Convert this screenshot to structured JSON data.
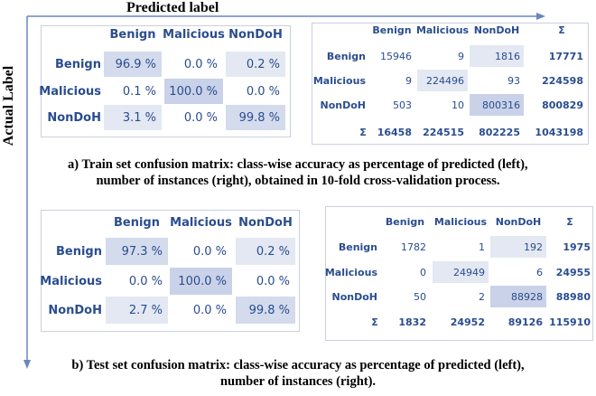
{
  "figure": {
    "axis_labels": {
      "predicted": "Predicted label",
      "actual": "Actual Label"
    },
    "panels": [
      {
        "left": {
          "headers": [
            "Benign",
            "Malicious",
            "NonDoH"
          ],
          "rows": [
            {
              "label": "Benign",
              "cells": [
                "96.9 %",
                "0.0 %",
                "0.2 %"
              ]
            },
            {
              "label": "Malicious",
              "cells": [
                "0.1 %",
                "100.0 %",
                "0.0 %"
              ]
            },
            {
              "label": "NonDoH",
              "cells": [
                "3.1 %",
                "0.0 %",
                "99.8 %"
              ]
            }
          ]
        },
        "right": {
          "headers": [
            "Benign",
            "Malicious",
            "NonDoH",
            "Σ"
          ],
          "rows": [
            {
              "label": "Benign",
              "cells": [
                15946,
                9,
                1816
              ],
              "total": 17771
            },
            {
              "label": "Malicious",
              "cells": [
                9,
                224496,
                93
              ],
              "total": 224598
            },
            {
              "label": "NonDoH",
              "cells": [
                503,
                10,
                800316
              ],
              "total": 800829
            }
          ],
          "sum_row": {
            "label": "Σ",
            "cells": [
              16458,
              224515,
              802225
            ],
            "total": 1043198
          }
        },
        "caption": [
          "a)  Train set confusion matrix: class-wise accuracy as percentage of predicted (left),",
          "number of instances (right), obtained in 10-fold cross-validation process."
        ]
      },
      {
        "left": {
          "headers": [
            "Benign",
            "Malicious",
            "NonDoH"
          ],
          "rows": [
            {
              "label": "Benign",
              "cells": [
                "97.3 %",
                "0.0 %",
                "0.2 %"
              ]
            },
            {
              "label": "Malicious",
              "cells": [
                "0.0 %",
                "100.0 %",
                "0.0 %"
              ]
            },
            {
              "label": "NonDoH",
              "cells": [
                "2.7 %",
                "0.0 %",
                "99.8 %"
              ]
            }
          ]
        },
        "right": {
          "headers": [
            "Benign",
            "Malicious",
            "NonDoH",
            "Σ"
          ],
          "rows": [
            {
              "label": "Benign",
              "cells": [
                1782,
                1,
                192
              ],
              "total": 1975
            },
            {
              "label": "Malicious",
              "cells": [
                0,
                24949,
                6
              ],
              "total": 24955
            },
            {
              "label": "NonDoH",
              "cells": [
                50,
                2,
                88928
              ],
              "total": 88980
            }
          ],
          "sum_row": {
            "label": "Σ",
            "cells": [
              1832,
              24952,
              89126
            ],
            "total": 115910
          }
        },
        "caption": [
          "b) Test set confusion matrix: class-wise accuracy as percentage of predicted (left),",
          "number of instances (right)."
        ]
      }
    ]
  }
}
